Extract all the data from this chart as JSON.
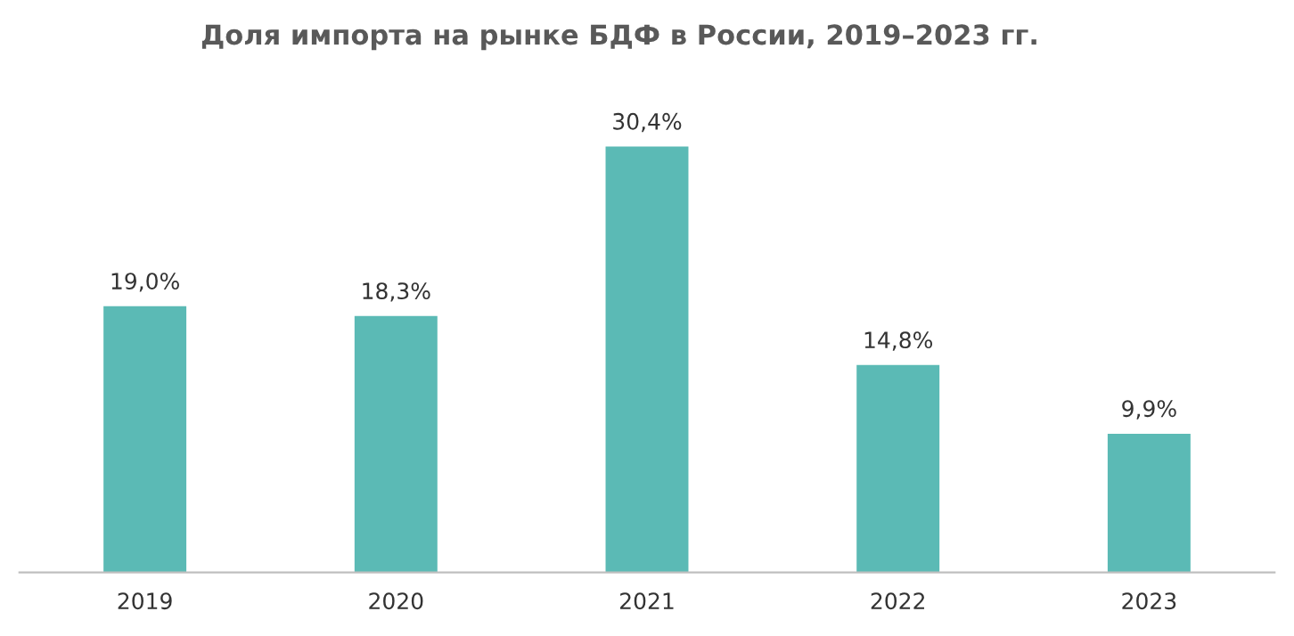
{
  "chart_data": {
    "type": "bar",
    "title": "Доля импорта на рынке БДФ в России, 2019–2023 гг.",
    "categories": [
      "2019",
      "2020",
      "2021",
      "2022",
      "2023"
    ],
    "values": [
      19.0,
      18.3,
      30.4,
      14.8,
      9.9
    ],
    "value_labels": [
      "19,0%",
      "18,3%",
      "30,4%",
      "14,8%",
      "9,9%"
    ],
    "color": "#5bbab5",
    "grid": false,
    "legend": false
  }
}
